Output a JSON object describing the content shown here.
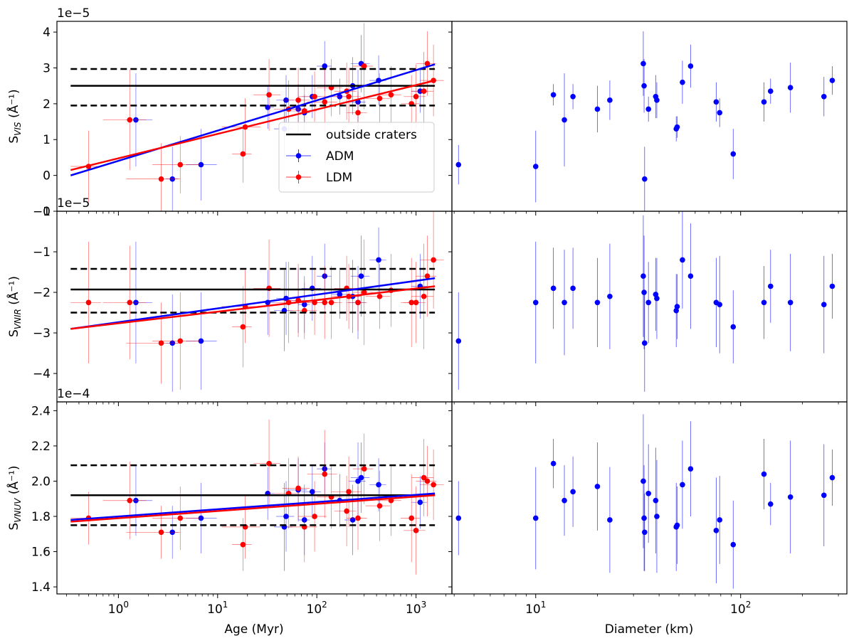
{
  "chart_data": {
    "type": "scatter",
    "shared_axes": {
      "left_xlabel": "Age (Myr)",
      "right_xlabel": "Diameter (km)",
      "left_xscale": "log",
      "right_xscale": "log",
      "left_xlim": [
        0.24,
        2300
      ],
      "right_xlim": [
        3.9,
        330
      ],
      "left_xticks": [
        {
          "value": 1,
          "base": "10",
          "exp": "0"
        },
        {
          "value": 10,
          "base": "10",
          "exp": "1"
        },
        {
          "value": 100,
          "base": "10",
          "exp": "2"
        },
        {
          "value": 1000,
          "base": "10",
          "exp": "3"
        }
      ],
      "right_xticks": [
        {
          "value": 10,
          "base": "10",
          "exp": "1"
        },
        {
          "value": 100,
          "base": "10",
          "exp": "2"
        }
      ]
    },
    "legend": {
      "location": "inside top panel, center-right",
      "entries": [
        {
          "label": "outside craters",
          "color": "#000000",
          "kind": "line"
        },
        {
          "label": "ADM",
          "color": "#0000ff",
          "kind": "errorbar"
        },
        {
          "label": "LDM",
          "color": "#ff0000",
          "kind": "errorbar"
        }
      ]
    },
    "rows": [
      {
        "name": "VIS",
        "ylabel_main": "S",
        "ylabel_sub": "VIS",
        "ylabel_unit": "(Å⁻¹)",
        "offset_text": "1e−5",
        "ylim": [
          -1.0,
          4.3
        ],
        "yticks": [
          -1,
          0,
          1,
          2,
          3,
          4
        ],
        "ytick_labels": [
          "−1",
          "0",
          "1",
          "2",
          "3",
          "4"
        ],
        "outside_mean": 2.5,
        "outside_band": [
          1.95,
          2.97
        ],
        "fits": {
          "ADM": {
            "x": [
              0.33,
              1550
            ],
            "y": [
              0.0,
              3.1
            ]
          },
          "LDM": {
            "x": [
              0.33,
              1550
            ],
            "y": [
              0.15,
              2.65
            ]
          }
        },
        "ADM": {
          "x": [
            1.5,
            3.5,
            6.8,
            32,
            47,
            49,
            65,
            75,
            90,
            120,
            170,
            230,
            260,
            280,
            420,
            1100
          ],
          "y": [
            1.55,
            -0.1,
            0.3,
            1.9,
            1.3,
            2.1,
            1.85,
            1.75,
            2.2,
            3.05,
            2.2,
            2.5,
            2.05,
            3.12,
            2.65,
            2.35
          ],
          "yerr": [
            1.3,
            0.9,
            1.0,
            0.6,
            0.8,
            0.7,
            0.7,
            0.5,
            0.6,
            0.7,
            0.5,
            0.8,
            0.9,
            0.8,
            0.7,
            0.6
          ],
          "xerr_lo": [
            0.3,
            0.5,
            2.0,
            2,
            10,
            10,
            15,
            10,
            20,
            20,
            30,
            40,
            50,
            60,
            80,
            200
          ],
          "xerr_hi": [
            0.7,
            0.5,
            3.0,
            5,
            10,
            10,
            15,
            10,
            20,
            20,
            30,
            40,
            50,
            60,
            80,
            200
          ]
        },
        "LDM": {
          "x": [
            0.5,
            1.3,
            2.7,
            4.2,
            18,
            19,
            33,
            52,
            65,
            75,
            95,
            120,
            140,
            200,
            210,
            260,
            300,
            430,
            560,
            900,
            1000,
            1200,
            1300,
            1500
          ],
          "y": [
            0.25,
            1.55,
            -0.1,
            0.3,
            0.6,
            1.35,
            2.25,
            1.85,
            2.1,
            1.8,
            2.2,
            2.05,
            2.45,
            2.35,
            2.2,
            1.75,
            3.05,
            2.15,
            2.25,
            2.0,
            2.2,
            2.35,
            3.12,
            2.65
          ],
          "yerr": [
            1.0,
            1.4,
            1.0,
            0.8,
            0.8,
            0.8,
            1.0,
            0.8,
            0.9,
            0.7,
            0.7,
            0.9,
            0.8,
            0.8,
            0.8,
            0.6,
            1.2,
            0.7,
            0.8,
            0.8,
            0.9,
            1.1,
            0.9,
            1.0
          ],
          "xerr_lo": [
            0.17,
            0.6,
            1.5,
            2.0,
            4,
            8,
            10,
            15,
            20,
            25,
            30,
            40,
            40,
            50,
            70,
            60,
            70,
            120,
            150,
            200,
            250,
            300,
            300,
            400
          ],
          "xerr_hi": [
            0.17,
            0.6,
            1.5,
            2.5,
            4,
            8,
            10,
            15,
            20,
            25,
            30,
            40,
            40,
            50,
            70,
            60,
            70,
            120,
            150,
            200,
            250,
            300,
            300,
            400
          ]
        },
        "diameter": {
          "x": [
            4.2,
            10,
            12.2,
            13.8,
            15.2,
            20,
            23,
            33.5,
            33.8,
            34,
            35.5,
            38.5,
            39,
            48.5,
            49,
            52,
            57,
            76,
            79,
            92,
            130,
            140,
            175,
            255,
            280
          ],
          "y": [
            0.3,
            0.25,
            2.25,
            1.55,
            2.2,
            1.85,
            2.1,
            3.12,
            2.5,
            -0.1,
            1.85,
            2.2,
            2.1,
            1.3,
            1.35,
            2.6,
            3.05,
            2.05,
            1.75,
            0.6,
            2.05,
            2.35,
            2.45,
            2.2,
            2.65
          ],
          "yerr": [
            0.55,
            1.0,
            0.3,
            1.3,
            0.35,
            0.65,
            0.55,
            0.9,
            0.75,
            0.9,
            0.35,
            0.6,
            0.5,
            0.35,
            0.3,
            0.6,
            0.6,
            0.55,
            0.4,
            0.7,
            0.55,
            0.35,
            0.7,
            0.55,
            0.4
          ]
        }
      },
      {
        "name": "VNIR",
        "ylabel_main": "S",
        "ylabel_sub": "VNIR",
        "ylabel_unit": "(Å⁻¹)",
        "offset_text": "1e−5",
        "ylim": [
          -4.7,
          0.0
        ],
        "yticks": [
          -4,
          -3,
          -2,
          -1,
          0
        ],
        "ytick_labels": [
          "−4",
          "−3",
          "−2",
          "−1",
          "0"
        ],
        "outside_mean": -1.93,
        "outside_band": [
          -2.5,
          -1.42
        ],
        "fits": {
          "ADM": {
            "x": [
              0.33,
              1550
            ],
            "y": [
              -2.9,
              -1.65
            ]
          },
          "LDM": {
            "x": [
              0.33,
              1550
            ],
            "y": [
              -2.9,
              -1.85
            ]
          }
        },
        "ADM": {
          "x": [
            1.5,
            3.5,
            6.8,
            32,
            47,
            49,
            65,
            75,
            90,
            120,
            170,
            230,
            260,
            280,
            420,
            1100
          ],
          "y": [
            -2.25,
            -3.25,
            -3.2,
            -2.25,
            -2.45,
            -2.15,
            -2.2,
            -2.3,
            -1.9,
            -1.6,
            -2.05,
            -2.1,
            -2.25,
            -1.6,
            -1.2,
            -1.85
          ],
          "yerr": [
            1.5,
            1.2,
            1.2,
            0.8,
            1.0,
            0.9,
            0.8,
            0.7,
            0.8,
            0.8,
            0.6,
            0.9,
            0.9,
            1.0,
            0.8,
            0.8
          ],
          "xerr_lo": [
            0.3,
            0.5,
            2.0,
            2,
            10,
            10,
            15,
            10,
            20,
            20,
            30,
            40,
            50,
            60,
            80,
            200
          ],
          "xerr_hi": [
            0.7,
            0.5,
            3.0,
            5,
            10,
            10,
            15,
            10,
            20,
            20,
            30,
            40,
            50,
            60,
            80,
            200
          ]
        },
        "LDM": {
          "x": [
            0.5,
            1.3,
            2.7,
            4.2,
            18,
            19,
            33,
            52,
            65,
            75,
            95,
            120,
            140,
            200,
            210,
            260,
            300,
            430,
            560,
            900,
            1000,
            1200,
            1300,
            1500
          ],
          "y": [
            -2.25,
            -2.25,
            -3.25,
            -3.2,
            -2.85,
            -2.35,
            -1.9,
            -2.25,
            -2.2,
            -2.45,
            -2.25,
            -2.25,
            -2.25,
            -1.9,
            -2.1,
            -2.25,
            -2.0,
            -2.1,
            -1.95,
            -2.25,
            -2.25,
            -2.1,
            -1.6,
            -1.2
          ],
          "yerr": [
            1.5,
            1.4,
            1.0,
            1.2,
            1.0,
            0.9,
            1.2,
            1.0,
            0.9,
            0.7,
            0.8,
            0.9,
            0.9,
            0.8,
            0.8,
            0.7,
            1.3,
            0.8,
            0.9,
            1.1,
            1.0,
            1.3,
            1.0,
            1.2
          ],
          "xerr_lo": [
            0.17,
            0.6,
            1.5,
            2.0,
            4,
            8,
            10,
            15,
            20,
            25,
            30,
            40,
            40,
            50,
            70,
            60,
            70,
            120,
            150,
            200,
            250,
            300,
            300,
            400
          ],
          "xerr_hi": [
            0.17,
            0.6,
            1.5,
            2.5,
            4,
            8,
            10,
            15,
            20,
            25,
            30,
            40,
            40,
            50,
            70,
            60,
            70,
            120,
            150,
            200,
            250,
            300,
            300,
            400
          ]
        },
        "diameter": {
          "x": [
            4.2,
            10,
            12.2,
            13.8,
            15.2,
            20,
            23,
            33.5,
            33.8,
            34,
            35.5,
            38.5,
            39,
            48.5,
            49,
            52,
            57,
            76,
            79,
            92,
            130,
            140,
            175,
            255,
            280
          ],
          "y": [
            -3.2,
            -2.25,
            -1.9,
            -2.25,
            -1.9,
            -2.25,
            -2.1,
            -1.6,
            -2.0,
            -3.25,
            -2.25,
            -2.05,
            -2.15,
            -2.45,
            -2.35,
            -1.2,
            -1.6,
            -2.25,
            -2.3,
            -2.85,
            -2.25,
            -1.85,
            -2.25,
            -2.3,
            -1.85
          ],
          "yerr": [
            1.2,
            1.5,
            1.0,
            1.3,
            1.0,
            1.1,
            1.3,
            1.5,
            1.4,
            1.2,
            1.0,
            0.9,
            1.0,
            0.9,
            0.8,
            1.2,
            1.3,
            1.1,
            1.2,
            0.9,
            0.9,
            0.9,
            1.2,
            1.2,
            0.8
          ]
        }
      },
      {
        "name": "VNUV",
        "ylabel_main": "S",
        "ylabel_sub": "VNUV",
        "ylabel_unit": "(Å⁻¹)",
        "offset_text": "1e−4",
        "ylim": [
          1.36,
          2.45
        ],
        "yticks": [
          1.4,
          1.6,
          1.8,
          2.0,
          2.2,
          2.4
        ],
        "ytick_labels": [
          "1.4",
          "1.6",
          "1.8",
          "2.0",
          "2.2",
          "2.4"
        ],
        "outside_mean": 1.92,
        "outside_band": [
          1.75,
          2.09
        ],
        "fits": {
          "ADM": {
            "x": [
              0.33,
              1550
            ],
            "y": [
              1.78,
              1.93
            ]
          },
          "LDM": {
            "x": [
              0.33,
              1550
            ],
            "y": [
              1.77,
              1.92
            ]
          }
        },
        "ADM": {
          "x": [
            1.5,
            3.5,
            6.8,
            32,
            47,
            49,
            65,
            75,
            90,
            120,
            170,
            230,
            260,
            280,
            420,
            1100
          ],
          "y": [
            1.89,
            1.71,
            1.79,
            1.93,
            1.74,
            1.8,
            1.95,
            1.78,
            1.94,
            2.07,
            1.89,
            1.78,
            2.0,
            2.02,
            1.98,
            1.88
          ],
          "yerr": [
            0.2,
            0.15,
            0.2,
            0.15,
            0.25,
            0.2,
            0.18,
            0.2,
            0.15,
            0.15,
            0.15,
            0.2,
            0.22,
            0.2,
            0.15,
            0.15
          ],
          "xerr_lo": [
            0.3,
            0.5,
            2.0,
            2,
            10,
            10,
            15,
            10,
            20,
            20,
            30,
            40,
            50,
            60,
            80,
            200
          ],
          "xerr_hi": [
            0.7,
            0.5,
            3.0,
            5,
            10,
            10,
            15,
            10,
            20,
            20,
            30,
            40,
            50,
            60,
            80,
            200
          ]
        },
        "LDM": {
          "x": [
            0.5,
            1.3,
            2.7,
            4.2,
            18,
            19,
            33,
            52,
            65,
            75,
            95,
            120,
            140,
            200,
            210,
            260,
            300,
            430,
            560,
            900,
            1000,
            1200,
            1300,
            1500
          ],
          "y": [
            1.79,
            1.89,
            1.71,
            1.79,
            1.64,
            1.74,
            2.1,
            1.93,
            1.96,
            1.74,
            1.8,
            2.04,
            1.91,
            1.83,
            1.94,
            1.79,
            2.07,
            1.86,
            1.89,
            1.79,
            1.72,
            2.02,
            2.0,
            1.98
          ],
          "yerr": [
            0.15,
            0.22,
            0.15,
            0.18,
            0.15,
            0.18,
            0.25,
            0.2,
            0.18,
            0.2,
            0.2,
            0.25,
            0.18,
            0.2,
            0.2,
            0.18,
            0.2,
            0.2,
            0.2,
            0.25,
            0.25,
            0.22,
            0.2,
            0.2
          ],
          "xerr_lo": [
            0.17,
            0.6,
            1.5,
            2.0,
            4,
            8,
            10,
            15,
            20,
            25,
            30,
            40,
            40,
            50,
            70,
            60,
            70,
            120,
            150,
            200,
            250,
            300,
            300,
            400
          ],
          "xerr_hi": [
            0.17,
            0.6,
            1.5,
            2.5,
            4,
            8,
            10,
            15,
            20,
            25,
            30,
            40,
            40,
            50,
            70,
            60,
            70,
            120,
            150,
            200,
            250,
            300,
            300,
            400
          ]
        },
        "diameter": {
          "x": [
            4.2,
            10,
            12.2,
            13.8,
            15.2,
            20,
            23,
            33.5,
            33.8,
            34,
            35.5,
            38.5,
            39,
            48.5,
            49,
            52,
            57,
            76,
            79,
            92,
            130,
            140,
            175,
            255,
            280
          ],
          "y": [
            1.79,
            1.79,
            2.1,
            1.89,
            1.94,
            1.97,
            1.78,
            2.0,
            1.79,
            1.71,
            1.93,
            1.89,
            1.8,
            1.74,
            1.75,
            1.98,
            2.07,
            1.72,
            1.78,
            1.64,
            2.04,
            1.87,
            1.91,
            1.92,
            2.02
          ],
          "yerr": [
            0.21,
            0.29,
            0.14,
            0.2,
            0.2,
            0.25,
            0.3,
            0.38,
            0.3,
            0.22,
            0.28,
            0.3,
            0.32,
            0.25,
            0.22,
            0.25,
            0.27,
            0.3,
            0.25,
            0.25,
            0.2,
            0.12,
            0.32,
            0.29,
            0.16
          ]
        }
      }
    ]
  }
}
